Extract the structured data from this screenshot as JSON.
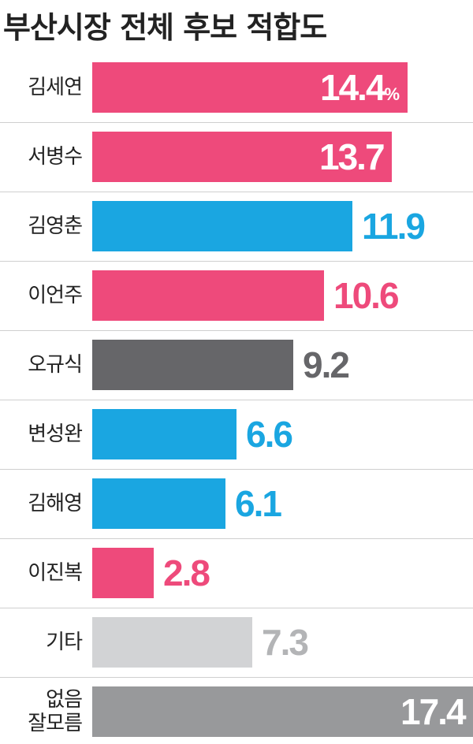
{
  "chart_data": {
    "type": "bar",
    "title": "부산시장 전체 후보 적합도",
    "unit_label": "%",
    "categories": [
      "김세연",
      "서병수",
      "김영춘",
      "이언주",
      "오규식",
      "변성완",
      "김해영",
      "이진복",
      "기타",
      "없음\n잘모름"
    ],
    "values": [
      14.4,
      13.7,
      11.9,
      10.6,
      9.2,
      6.6,
      6.1,
      2.8,
      7.3,
      17.4
    ],
    "value_labels": [
      "14.4",
      "13.7",
      "11.9",
      "10.6",
      "9.2",
      "6.6",
      "6.1",
      "2.8",
      "7.3",
      "17.4"
    ],
    "colors": [
      "#ee4a7b",
      "#ee4a7b",
      "#1aa6e1",
      "#ee4a7b",
      "#666669",
      "#1aa6e1",
      "#1aa6e1",
      "#ee4a7b",
      "#d2d3d5",
      "#98999b"
    ],
    "label_colors": [
      "#ffffff",
      "#ffffff",
      "#1aa6e1",
      "#ee4a7b",
      "#666669",
      "#1aa6e1",
      "#1aa6e1",
      "#ee4a7b",
      "#b3b4b6",
      "#ffffff"
    ],
    "label_inside": [
      true,
      true,
      false,
      false,
      false,
      false,
      false,
      false,
      false,
      true
    ],
    "orientation": "horizontal",
    "xlim": [
      0,
      17.4
    ],
    "grid": false,
    "legend": "none"
  }
}
